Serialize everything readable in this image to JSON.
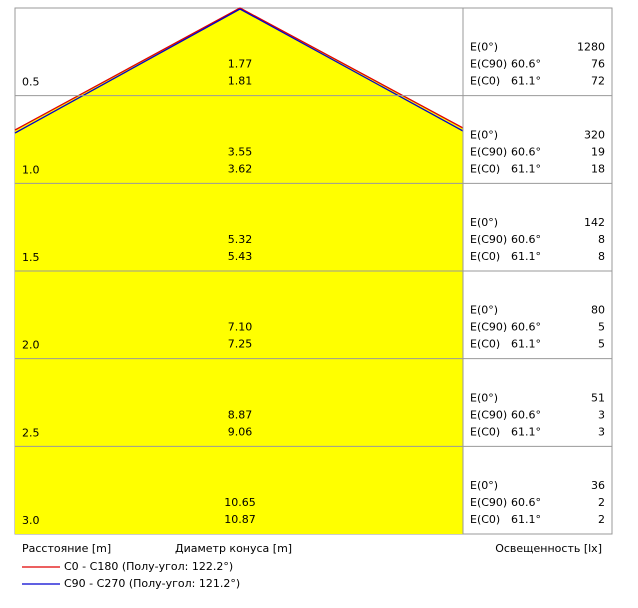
{
  "labels": {
    "e0": "E(0°)",
    "ec90": "E(C90)",
    "ec0": "E(C0)"
  },
  "rows": [
    {
      "distance": "0.5",
      "diameter_c0": "1.77",
      "diameter_c90": "1.81",
      "e0": "1280",
      "c90_angle": "60.6°",
      "c90_value": "76",
      "c0_angle": "61.1°",
      "c0_value": "72"
    },
    {
      "distance": "1.0",
      "diameter_c0": "3.55",
      "diameter_c90": "3.62",
      "e0": "320",
      "c90_angle": "60.6°",
      "c90_value": "19",
      "c0_angle": "61.1°",
      "c0_value": "18"
    },
    {
      "distance": "1.5",
      "diameter_c0": "5.32",
      "diameter_c90": "5.43",
      "e0": "142",
      "c90_angle": "60.6°",
      "c90_value": "8",
      "c0_angle": "61.1°",
      "c0_value": "8"
    },
    {
      "distance": "2.0",
      "diameter_c0": "7.10",
      "diameter_c90": "7.25",
      "e0": "80",
      "c90_angle": "60.6°",
      "c90_value": "5",
      "c0_angle": "61.1°",
      "c0_value": "5"
    },
    {
      "distance": "2.5",
      "diameter_c0": "8.87",
      "diameter_c90": "9.06",
      "e0": "51",
      "c90_angle": "60.6°",
      "c90_value": "3",
      "c0_angle": "61.1°",
      "c0_value": "3"
    },
    {
      "distance": "3.0",
      "diameter_c0": "10.65",
      "diameter_c90": "10.87",
      "e0": "36",
      "c90_angle": "60.6°",
      "c90_value": "2",
      "c0_angle": "61.1°",
      "c0_value": "2"
    }
  ],
  "footer": {
    "distance_label": "Расстояние [m]",
    "diameter_label": "Диаметр конуса [m]",
    "illuminance_label": "Освещенность [lx]"
  },
  "legend": [
    {
      "name": "C0 - C180 (Полу-угол: 122.2°)",
      "color": "#e00000"
    },
    {
      "name": "C90 - C270 (Полу-угол: 121.2°)",
      "color": "#0000d0"
    }
  ]
}
